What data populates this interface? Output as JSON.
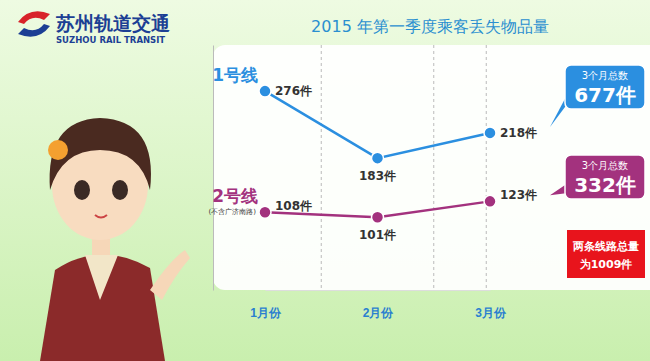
{
  "chart_data": {
    "type": "line",
    "title": "2015 年第一季度乘客丢失物品量",
    "categories": [
      "1月份",
      "2月份",
      "3月份"
    ],
    "series": [
      {
        "name": "1号线",
        "color": "#2b8fe0",
        "values": [
          276,
          183,
          218
        ],
        "value_labels": [
          "276件",
          "183件",
          "218件"
        ],
        "total_label": "3个月总数",
        "total": "677件"
      },
      {
        "name": "2号线",
        "note": "(不含广济南路)",
        "color": "#a3327e",
        "values": [
          108,
          101,
          123
        ],
        "value_labels": [
          "108件",
          "101件",
          "123件"
        ],
        "total_label": "3个月总数",
        "total": "332件"
      }
    ],
    "annotation": [
      "两条线路总量",
      "为1009件"
    ],
    "ylim": [
      0,
      340
    ],
    "data_labels": true,
    "tick_labels": "x",
    "marker": "circle"
  },
  "logo": {
    "name": "苏州轨道交通",
    "name_en": "SUZHOU RAIL TRANSIT"
  }
}
